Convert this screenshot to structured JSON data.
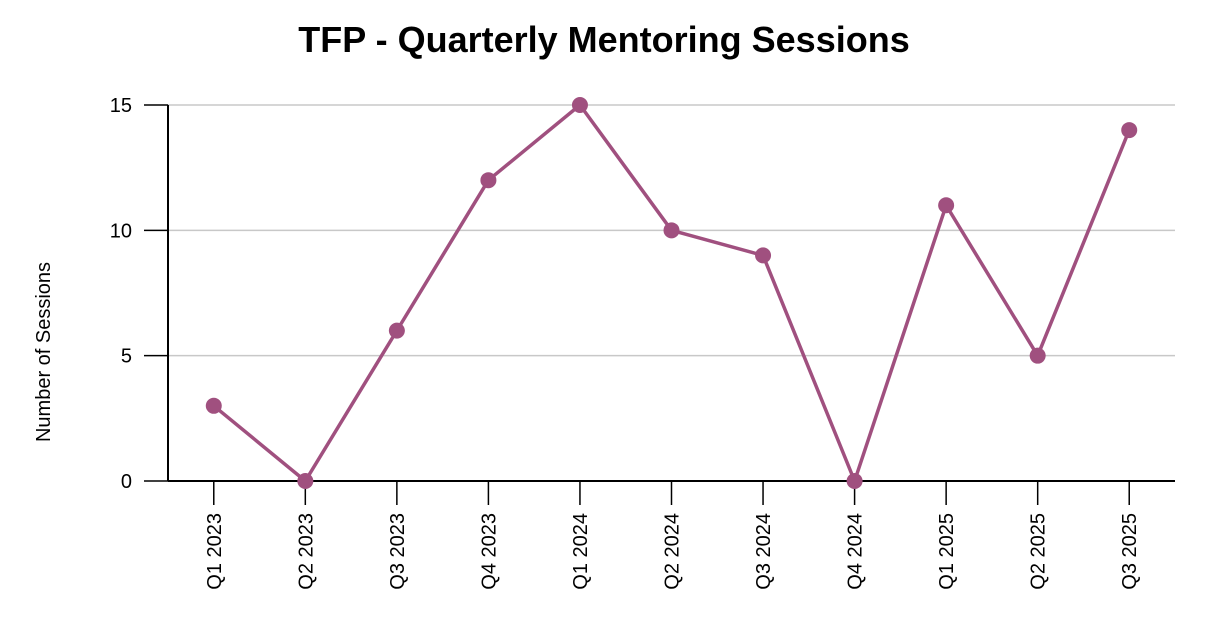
{
  "chart_data": {
    "type": "line",
    "title": "TFP - Quarterly Mentoring Sessions",
    "y_label": "Number of Sessions",
    "categories": [
      "Q1 2023",
      "Q2 2023",
      "Q3 2023",
      "Q4 2023",
      "Q1 2024",
      "Q2 2024",
      "Q3 2024",
      "Q4 2024",
      "Q1 2025",
      "Q2 2025",
      "Q3 2025"
    ],
    "values": [
      3,
      0,
      6,
      12,
      15,
      10,
      9,
      0,
      11,
      5,
      14
    ],
    "color": "#a0507f",
    "ylim": [
      0,
      15
    ],
    "yticks": [
      0,
      5,
      10,
      15
    ],
    "grid": true
  }
}
